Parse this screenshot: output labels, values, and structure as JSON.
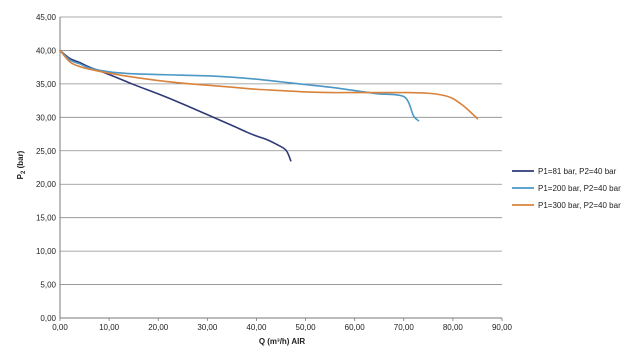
{
  "chart_data": {
    "type": "line",
    "title": "",
    "xlabel": "Q (m³/h) AIR",
    "ylabel_main": "P",
    "ylabel_sub": "2",
    "ylabel_unit": " (bar)",
    "xlim": [
      0,
      90
    ],
    "ylim": [
      0,
      45
    ],
    "x_ticks": [
      "0,00",
      "10,00",
      "20,00",
      "30,00",
      "40,00",
      "50,00",
      "60,00",
      "70,00",
      "80,00",
      "90,00"
    ],
    "y_ticks": [
      "0,00",
      "5,00",
      "10,00",
      "15,00",
      "20,00",
      "25,00",
      "30,00",
      "35,00",
      "40,00",
      "45,00"
    ],
    "grid": "horizontal",
    "legend_position": "right",
    "series": [
      {
        "name": "P1=81 bar, P2=40 bar",
        "color": "#2e3a78",
        "x": [
          0,
          2,
          4,
          6,
          10,
          15,
          20,
          25,
          30,
          35,
          38,
          40,
          42,
          44,
          46,
          47
        ],
        "y": [
          40,
          38.8,
          38.2,
          37.5,
          36.4,
          34.9,
          33.5,
          32.0,
          30.4,
          28.8,
          27.8,
          27.2,
          26.7,
          26.0,
          25.1,
          23.5
        ]
      },
      {
        "name": "P1=200 bar, P2=40 bar",
        "color": "#4b97c6",
        "x": [
          0,
          2,
          4,
          6,
          10,
          15,
          20,
          25,
          30,
          35,
          40,
          45,
          50,
          55,
          60,
          65,
          68,
          70,
          71,
          72,
          73
        ],
        "y": [
          40,
          38.6,
          38.0,
          37.4,
          36.8,
          36.5,
          36.4,
          36.3,
          36.2,
          36.0,
          35.7,
          35.3,
          34.9,
          34.5,
          34.0,
          33.5,
          33.4,
          33.1,
          32.2,
          30.2,
          29.5
        ]
      },
      {
        "name": "P1=300 bar, P2=40 bar",
        "color": "#d9823b",
        "x": [
          0,
          2,
          4,
          6,
          10,
          15,
          20,
          25,
          30,
          35,
          40,
          45,
          50,
          55,
          60,
          65,
          70,
          75,
          78,
          80,
          82,
          84,
          85
        ],
        "y": [
          40,
          38.3,
          37.6,
          37.2,
          36.6,
          36.0,
          35.5,
          35.1,
          34.8,
          34.5,
          34.2,
          34.0,
          33.8,
          33.7,
          33.7,
          33.7,
          33.7,
          33.6,
          33.3,
          32.8,
          31.8,
          30.5,
          29.8
        ]
      }
    ]
  }
}
